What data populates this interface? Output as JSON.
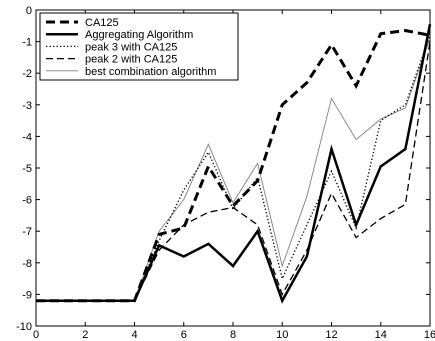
{
  "chart_data": {
    "type": "line",
    "title": "",
    "xlabel": "",
    "ylabel": "",
    "xlim": [
      0,
      16
    ],
    "ylim": [
      -10,
      0
    ],
    "xticks": [
      0,
      2,
      4,
      6,
      8,
      10,
      12,
      14,
      16
    ],
    "yticks": [
      0,
      -1,
      -2,
      -3,
      -4,
      -5,
      -6,
      -7,
      -8,
      -9,
      -10
    ],
    "grid": false,
    "legend_position": "top-left",
    "x": [
      0,
      1,
      2,
      3,
      4,
      5,
      6,
      7,
      8,
      9,
      10,
      11,
      12,
      13,
      14,
      15,
      16
    ],
    "series": [
      {
        "name": "CA125",
        "style": "thick-dashed",
        "color": "#000000",
        "values": [
          -9.2,
          -9.2,
          -9.2,
          -9.2,
          -9.2,
          -7.1,
          -6.9,
          -4.95,
          -6.2,
          -5.4,
          -3.0,
          -2.3,
          -1.1,
          -2.4,
          -0.75,
          -0.65,
          -0.8
        ]
      },
      {
        "name": "Aggregating Algorithm",
        "style": "thick-solid",
        "color": "#000000",
        "values": [
          -9.2,
          -9.2,
          -9.2,
          -9.2,
          -9.2,
          -7.45,
          -7.8,
          -7.4,
          -8.1,
          -7.0,
          -9.2,
          -7.8,
          -4.4,
          -6.8,
          -4.95,
          -4.4,
          -0.45
        ]
      },
      {
        "name": "peak 3 with CA125",
        "style": "dotted",
        "color": "#000000",
        "values": [
          -9.2,
          -9.2,
          -9.2,
          -9.2,
          -9.2,
          -7.3,
          -5.7,
          -4.5,
          -6.3,
          -5.3,
          -8.5,
          -6.8,
          -5.1,
          -6.9,
          -3.5,
          -3.0,
          -0.8
        ]
      },
      {
        "name": "peak 2 with CA125",
        "style": "dashed",
        "color": "#000000",
        "values": [
          -9.2,
          -9.2,
          -9.2,
          -9.2,
          -9.2,
          -7.6,
          -6.8,
          -6.4,
          -6.25,
          -6.8,
          -9.0,
          -7.6,
          -5.8,
          -7.2,
          -6.6,
          -6.15,
          -1.0
        ]
      },
      {
        "name": "best combination algorithm",
        "style": "thin-solid",
        "color": "#808080",
        "values": [
          -9.2,
          -9.2,
          -9.2,
          -9.2,
          -9.2,
          -7.0,
          -6.0,
          -4.25,
          -6.1,
          -4.85,
          -8.1,
          -5.9,
          -2.8,
          -4.1,
          -3.45,
          -3.1,
          -0.9
        ]
      }
    ]
  }
}
